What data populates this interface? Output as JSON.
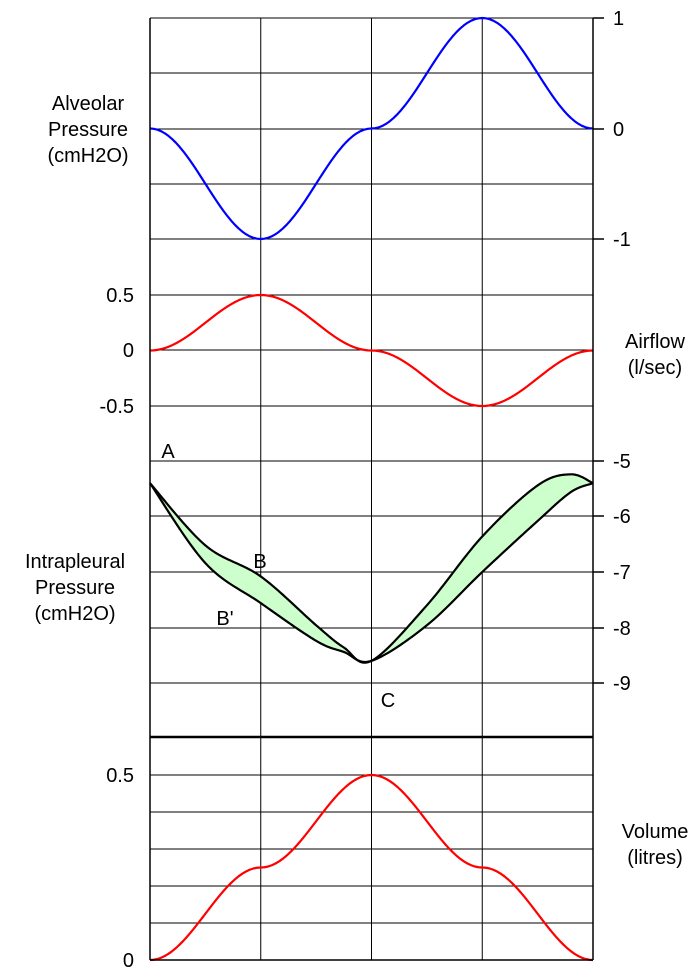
{
  "chart_data": [
    {
      "type": "line",
      "ylabel_lines": [
        "Alveolar",
        "Pressure",
        "(cmH2O)"
      ],
      "x": [
        0,
        0.5,
        1,
        1.5,
        2
      ],
      "ylim": [
        -1,
        1
      ],
      "yticks": [
        "1",
        "0",
        "-1"
      ],
      "series": [
        {
          "values": [
            0,
            -1,
            0,
            1,
            0
          ],
          "color": "#0000ff"
        }
      ]
    },
    {
      "type": "line",
      "ylabel_lines": [
        "Airflow",
        "(l/sec)"
      ],
      "x": [
        0,
        0.5,
        1,
        1.5,
        2
      ],
      "ylim": [
        -0.5,
        0.5
      ],
      "yticks": [
        "0.5",
        "0",
        "-0.5"
      ],
      "series": [
        {
          "values": [
            0,
            0.5,
            0,
            -0.5,
            0
          ],
          "color": "#ff0000"
        }
      ]
    },
    {
      "type": "area",
      "ylabel_lines": [
        "Intrapleural",
        "Pressure",
        "(cmH2O)"
      ],
      "x": [
        0,
        0.25,
        0.5,
        0.75,
        0.875,
        1,
        1.25,
        1.5,
        1.75,
        1.9,
        2
      ],
      "ylim": [
        -9.5,
        -4.5
      ],
      "yticks": [
        "-5",
        "-6",
        "-7",
        "-8",
        "-9"
      ],
      "series": [
        {
          "values": [
            -5,
            -6.8,
            -7.7,
            -8.55,
            -8.8,
            -9,
            -8.2,
            -7,
            -5.85,
            -5.2,
            -5
          ],
          "color": "#000000"
        },
        {
          "values": [
            -5,
            -6.4,
            -7.1,
            -8.2,
            -8.7,
            -9,
            -7.75,
            -6.2,
            -5.05,
            -4.8,
            -5
          ],
          "color": "#000000"
        }
      ],
      "fill_between_color": "#ccffcc",
      "point_labels": [
        "A",
        "B",
        "B'",
        "C"
      ]
    },
    {
      "type": "line",
      "ylabel_lines": [
        "Volume",
        "(litres)"
      ],
      "x": [
        0,
        0.5,
        1,
        1.5,
        2
      ],
      "ylim": [
        0,
        0.5
      ],
      "yticks": [
        "0.5",
        "0"
      ],
      "series": [
        {
          "values": [
            0,
            0.25,
            0.5,
            0.25,
            0
          ],
          "color": "#ff0000"
        }
      ]
    }
  ]
}
